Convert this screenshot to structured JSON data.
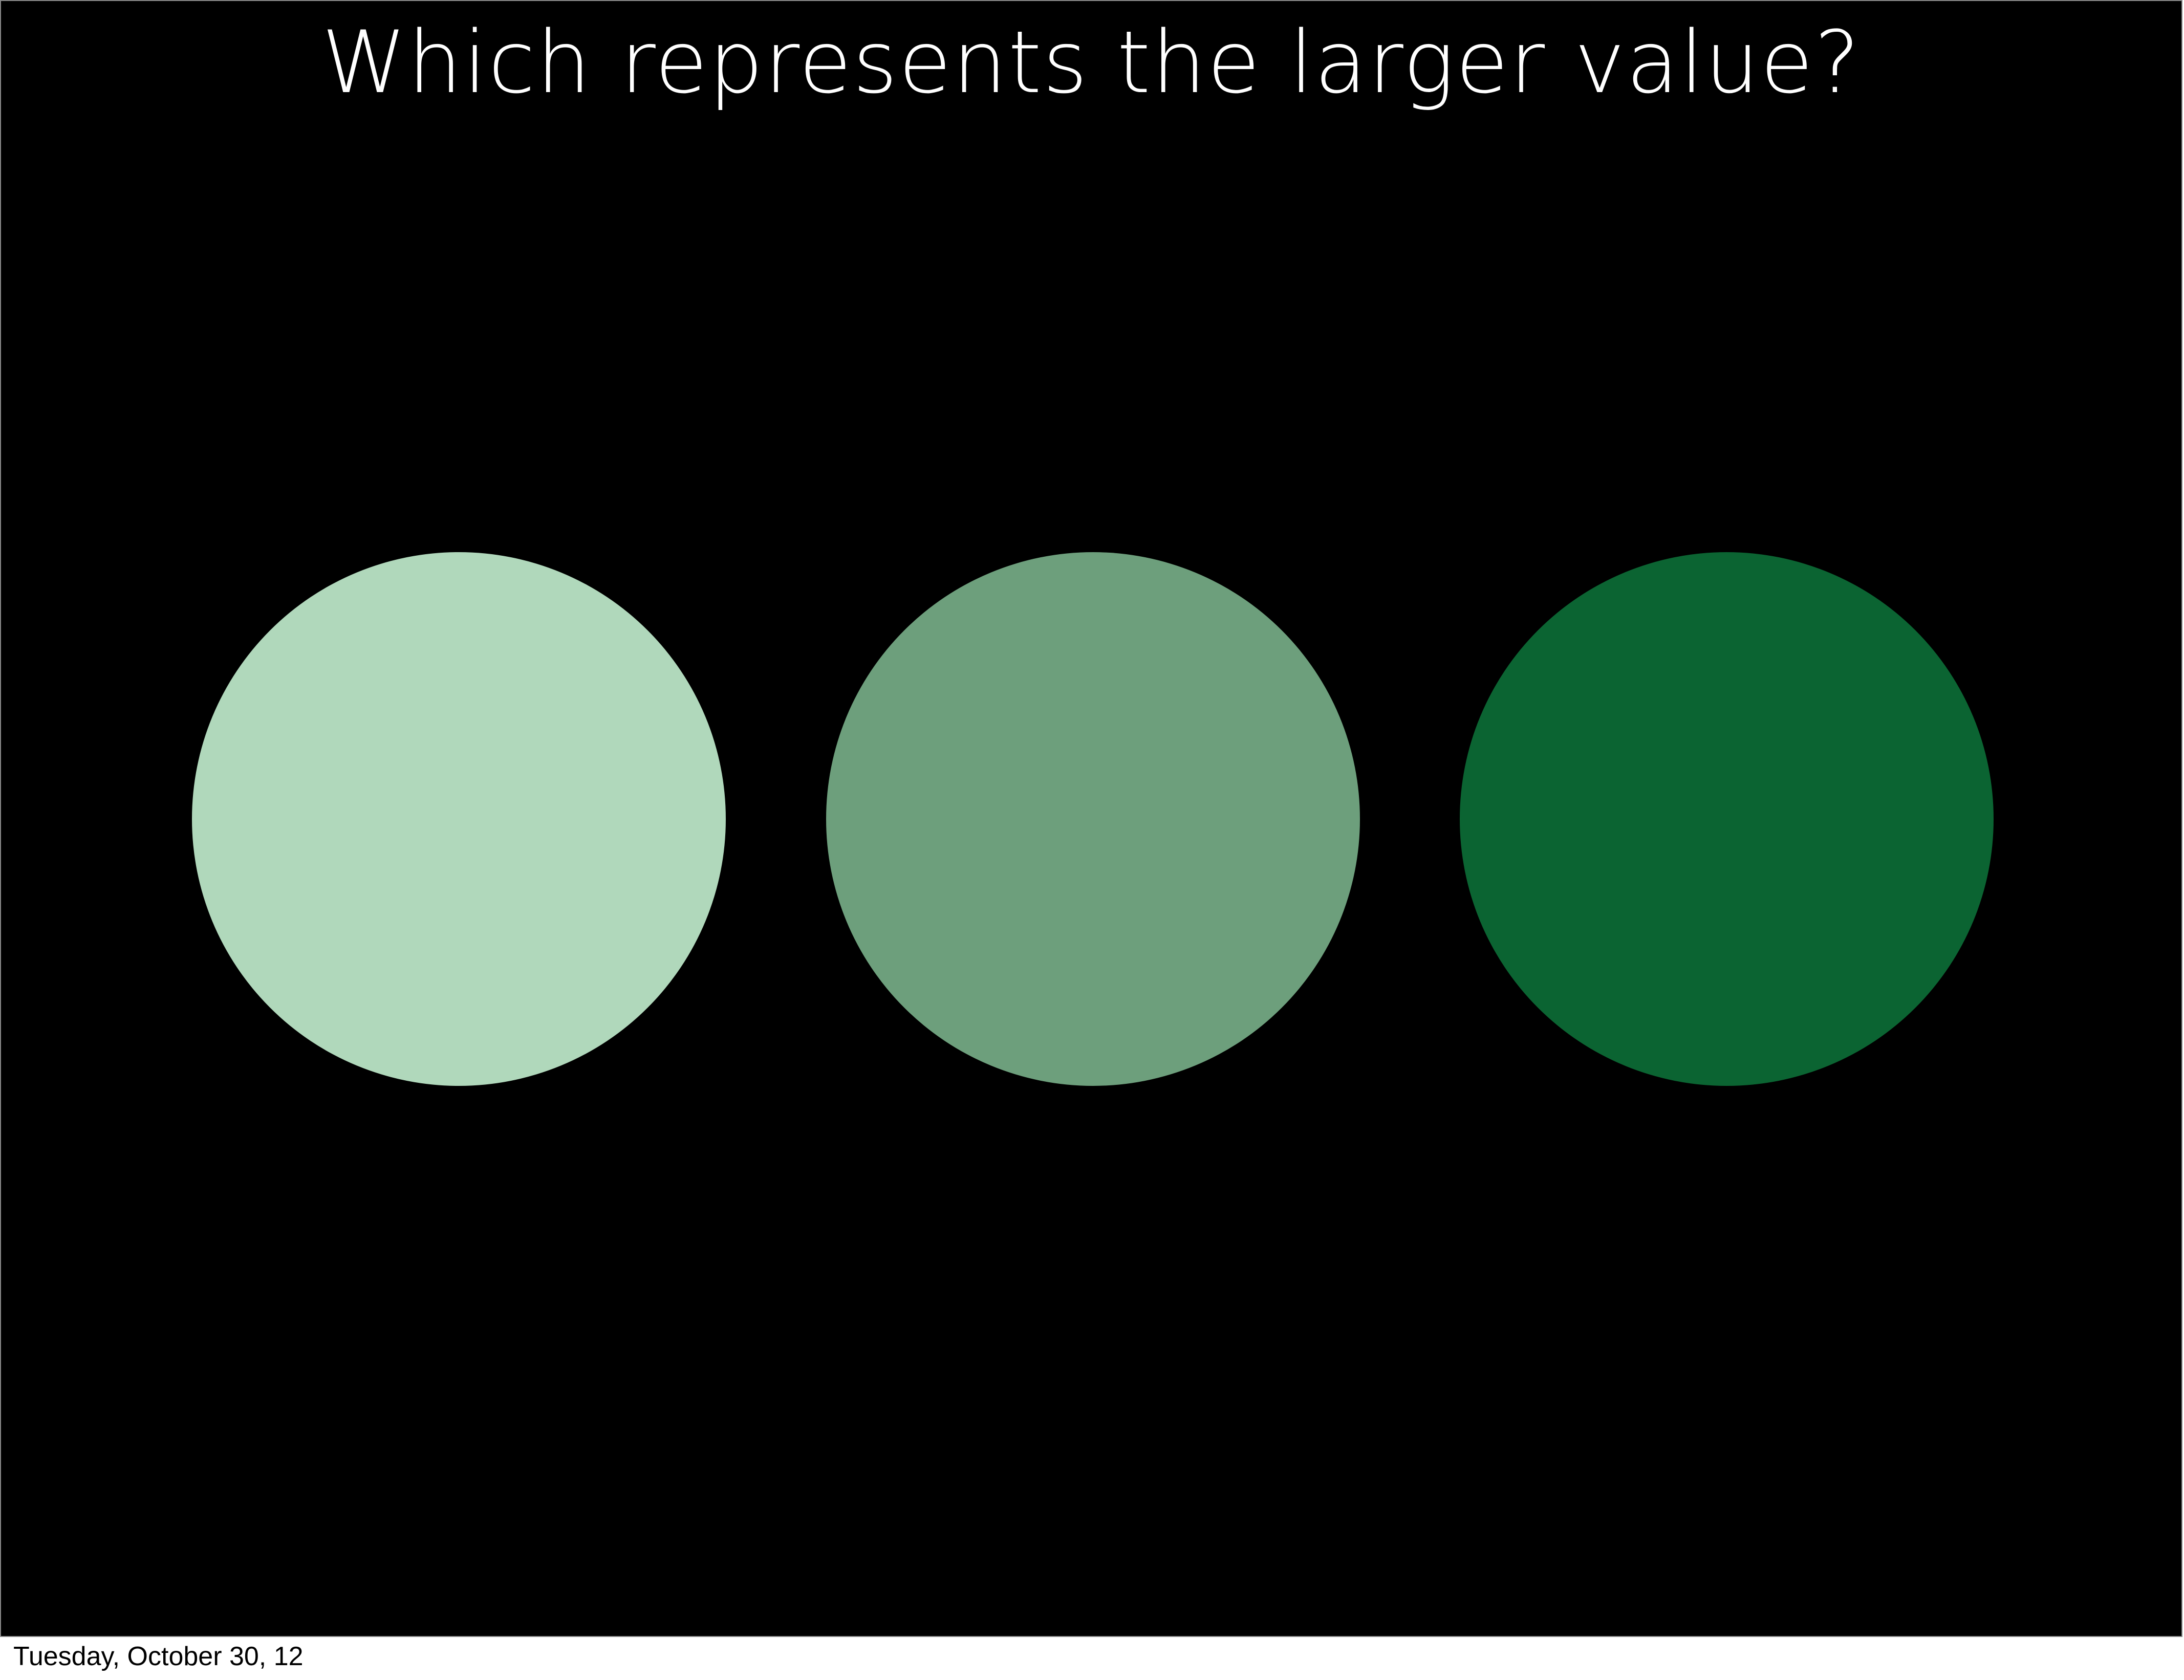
{
  "slide": {
    "title": "Which represents the larger value?",
    "background_color": "#000000",
    "title_color": "#ffffff",
    "circles": [
      {
        "color": "#b0d8bb"
      },
      {
        "color": "#6d9f7c"
      },
      {
        "color": "#0b6432"
      }
    ]
  },
  "footer": {
    "date": "Tuesday, October 30, 12"
  }
}
